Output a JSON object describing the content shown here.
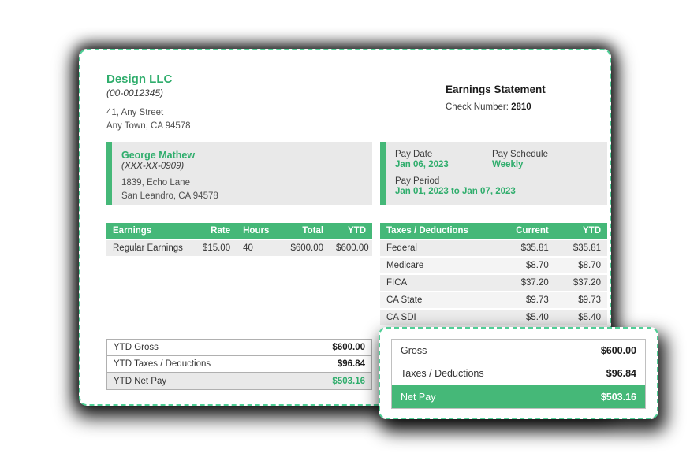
{
  "colors": {
    "brand_green": "#2fad6c",
    "header_green": "#45b878",
    "dash_green": "#4fcf96",
    "panel_gray": "#e9e9e9",
    "row_gray": "#ececec",
    "row_gray_alt": "#f4f4f4"
  },
  "company": {
    "name": "Design LLC",
    "id": "(00-0012345)",
    "address_line1": "41, Any Street",
    "address_line2": "Any Town, CA 94578"
  },
  "statement": {
    "title": "Earnings Statement",
    "check_label": "Check Number: ",
    "check_number": "2810"
  },
  "employee": {
    "name": "George Mathew",
    "ssn": "(XXX-XX-0909)",
    "address_line1": "1839, Echo Lane",
    "address_line2": "San Leandro, CA 94578"
  },
  "pay_info": {
    "pay_date_label": "Pay Date",
    "pay_date": "Jan 06, 2023",
    "pay_schedule_label": "Pay Schedule",
    "pay_schedule": "Weekly",
    "pay_period_label": "Pay Period",
    "pay_period": "Jan 01, 2023 to Jan 07, 2023"
  },
  "earnings_table": {
    "headers": [
      "Earnings",
      "Rate",
      "Hours",
      "Total",
      "YTD"
    ],
    "rows": [
      [
        "Regular Earnings",
        "$15.00",
        "40",
        "$600.00",
        "$600.00"
      ]
    ]
  },
  "taxes_table": {
    "headers": [
      "Taxes / Deductions",
      "Current",
      "YTD"
    ],
    "rows": [
      [
        "Federal",
        "$35.81",
        "$35.81"
      ],
      [
        "Medicare",
        "$8.70",
        "$8.70"
      ],
      [
        "FICA",
        "$37.20",
        "$37.20"
      ],
      [
        "CA State",
        "$9.73",
        "$9.73"
      ],
      [
        "CA SDI",
        "$5.40",
        "$5.40"
      ]
    ]
  },
  "ytd_summary": {
    "rows": [
      {
        "label": "YTD Gross",
        "value": "$600.00"
      },
      {
        "label": "YTD Taxes / Deductions",
        "value": "$96.84"
      },
      {
        "label": "YTD Net Pay",
        "value": "$503.16"
      }
    ]
  },
  "current_summary": {
    "rows": [
      {
        "label": "Gross",
        "value": "$600.00"
      },
      {
        "label": "Taxes / Deductions",
        "value": "$96.84"
      },
      {
        "label": "Net Pay",
        "value": "$503.16"
      }
    ]
  }
}
